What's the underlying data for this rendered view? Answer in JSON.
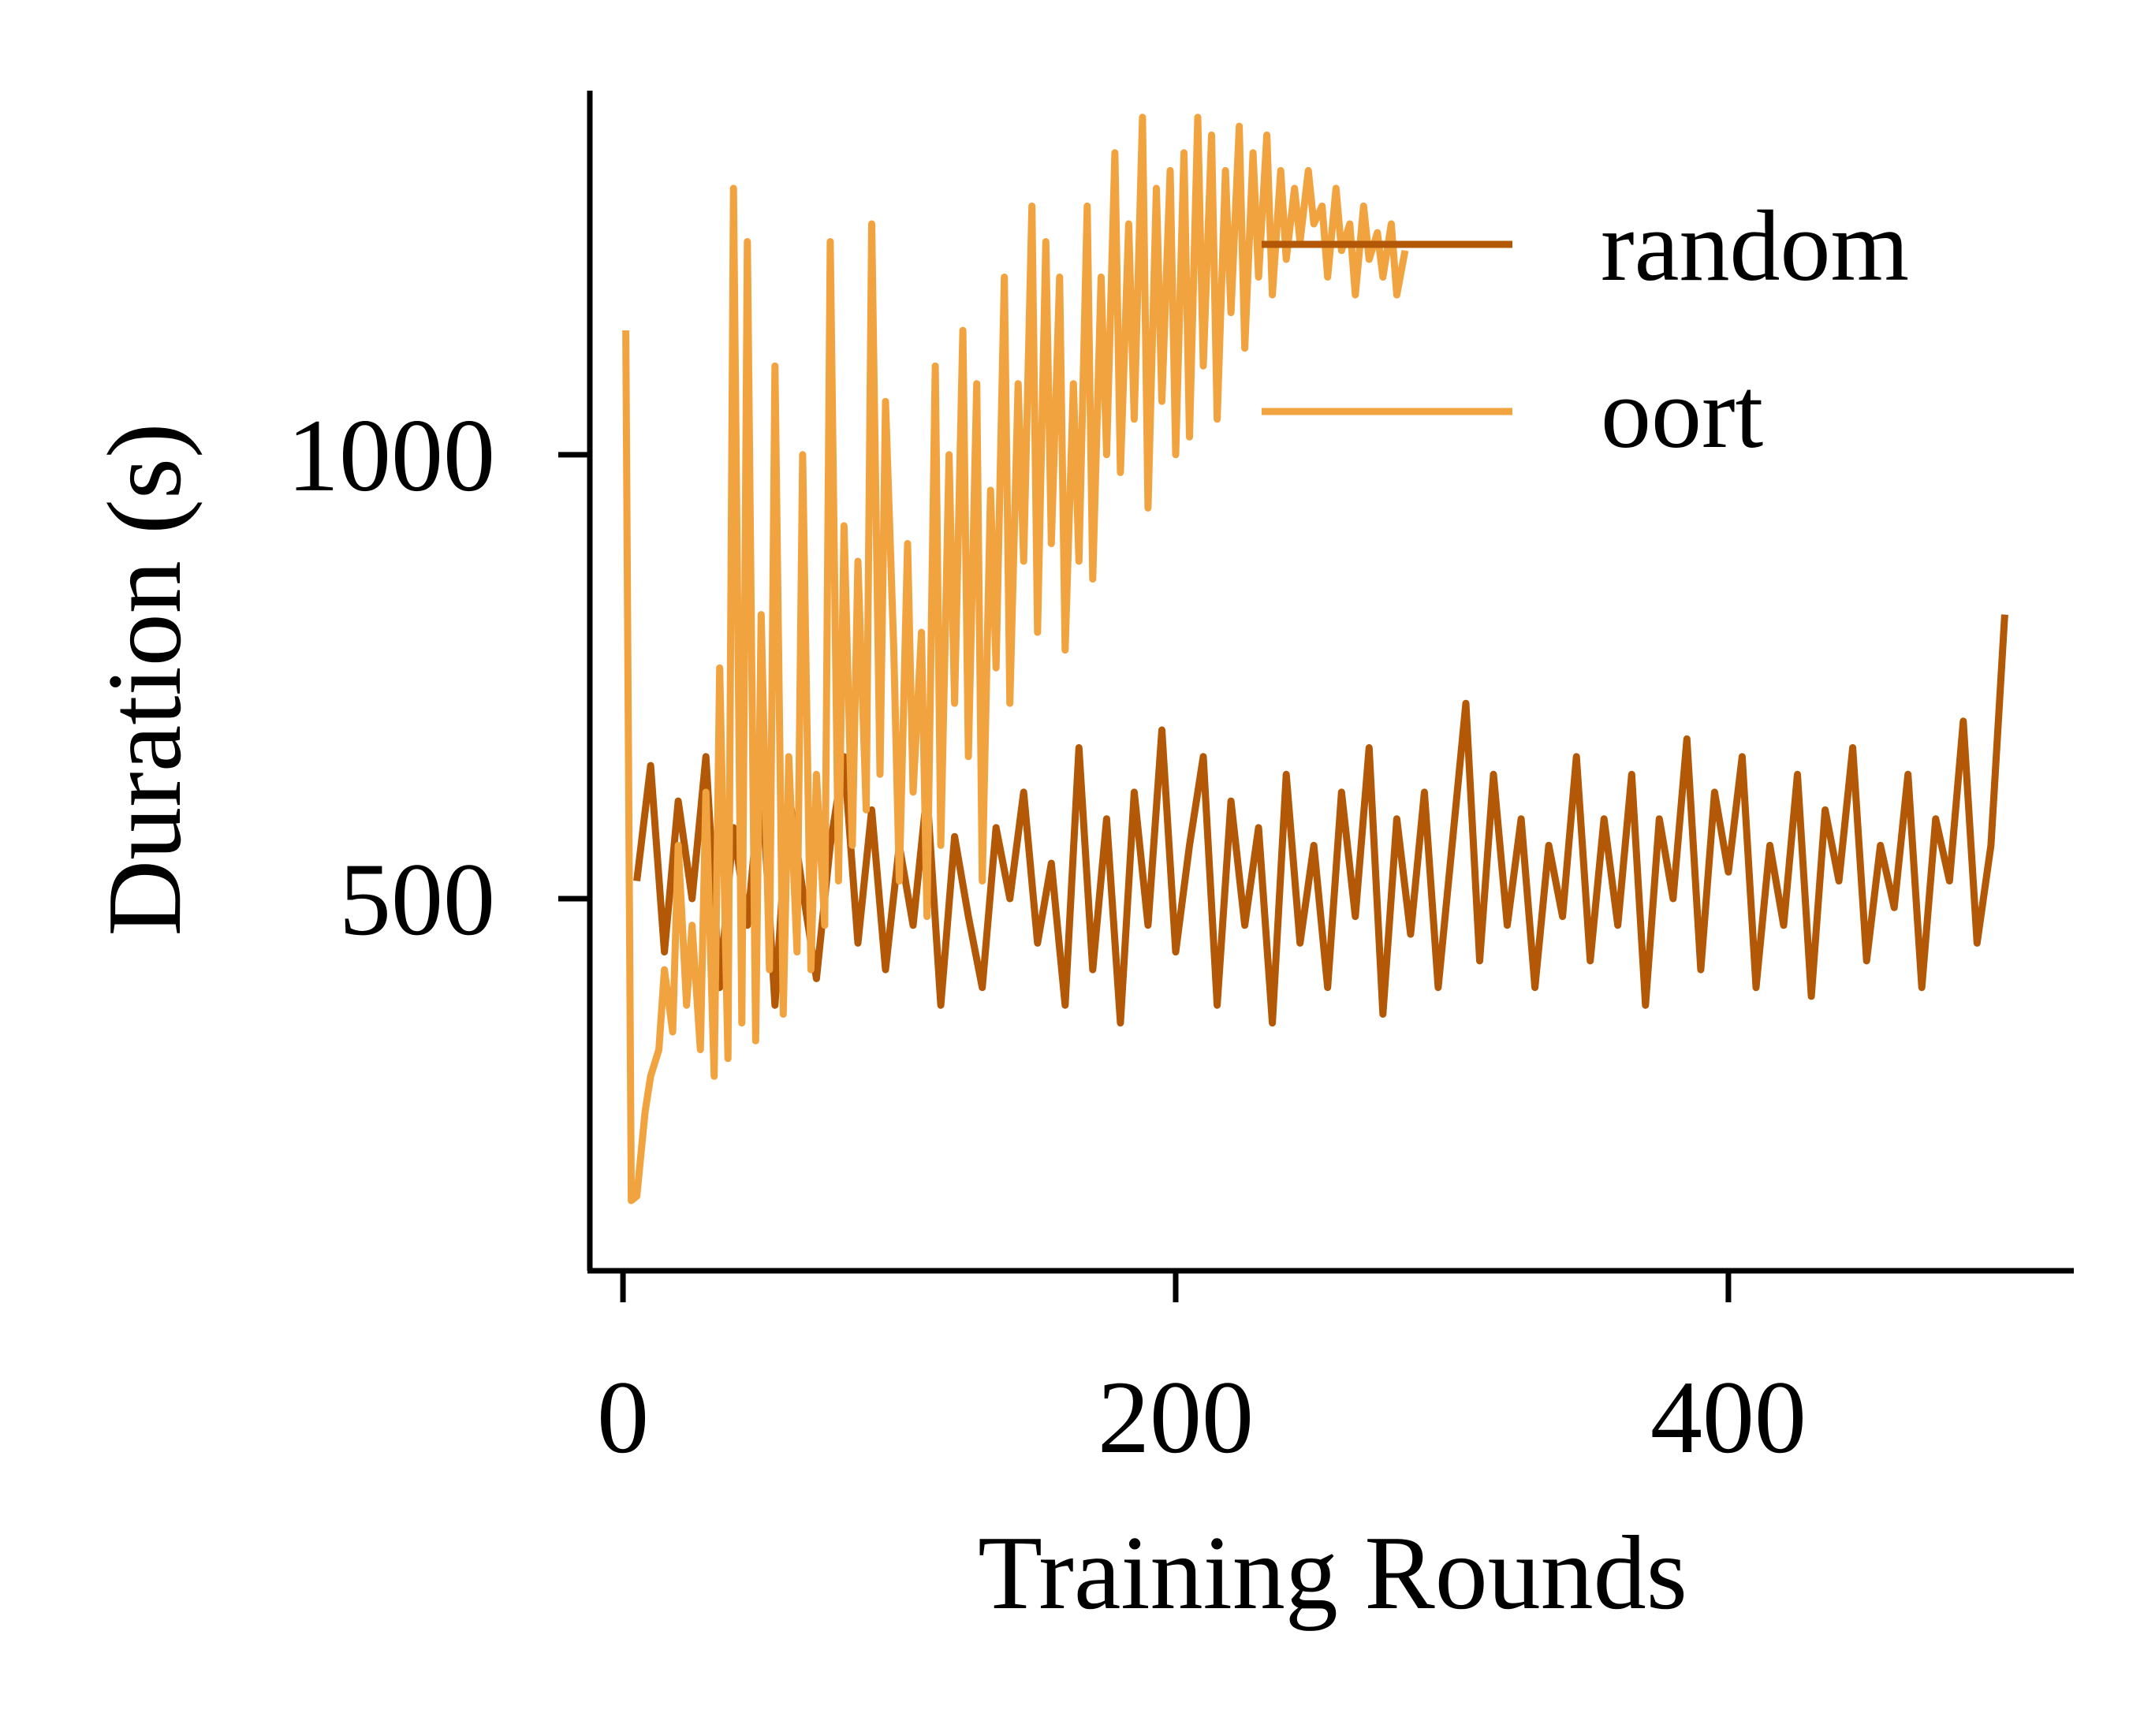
{
  "chart_data": {
    "type": "line",
    "title": "",
    "xlabel": "Training Rounds",
    "ylabel": "Duration (s)",
    "xlim": [
      -12,
      525
    ],
    "ylim": [
      81,
      1410
    ],
    "xticks": [
      {
        "value": 0,
        "label": "0"
      },
      {
        "value": 200,
        "label": "200"
      },
      {
        "value": 400,
        "label": "400"
      }
    ],
    "yticks": [
      {
        "value": 500,
        "label": "500"
      },
      {
        "value": 1000,
        "label": "1000"
      }
    ],
    "grid": false,
    "legend_position": "top-right",
    "series": [
      {
        "name": "random",
        "color": "#b35806",
        "x": [
          5,
          10,
          15,
          20,
          25,
          30,
          35,
          40,
          45,
          50,
          55,
          60,
          65,
          70,
          75,
          80,
          85,
          90,
          95,
          100,
          105,
          110,
          115,
          120,
          125,
          130,
          135,
          140,
          145,
          150,
          155,
          160,
          165,
          170,
          175,
          180,
          185,
          190,
          195,
          200,
          205,
          210,
          215,
          220,
          225,
          230,
          235,
          240,
          245,
          250,
          255,
          260,
          265,
          270,
          275,
          280,
          285,
          290,
          295,
          300,
          305,
          310,
          315,
          320,
          325,
          330,
          335,
          340,
          345,
          350,
          355,
          360,
          365,
          370,
          375,
          380,
          385,
          390,
          395,
          400,
          405,
          410,
          415,
          420,
          425,
          430,
          435,
          440,
          445,
          450,
          455,
          460,
          465,
          470,
          475,
          480,
          485,
          490,
          495,
          500
        ],
        "values": [
          520,
          650,
          440,
          610,
          500,
          660,
          400,
          580,
          470,
          640,
          380,
          620,
          510,
          410,
          560,
          660,
          450,
          600,
          420,
          560,
          470,
          620,
          380,
          570,
          480,
          400,
          580,
          500,
          620,
          450,
          540,
          380,
          670,
          420,
          590,
          360,
          620,
          470,
          690,
          440,
          560,
          660,
          380,
          610,
          470,
          580,
          360,
          640,
          450,
          560,
          400,
          620,
          480,
          670,
          370,
          590,
          460,
          620,
          400,
          560,
          720,
          430,
          640,
          470,
          590,
          400,
          560,
          480,
          660,
          430,
          590,
          470,
          640,
          380,
          590,
          500,
          680,
          420,
          620,
          530,
          660,
          400,
          560,
          470,
          640,
          390,
          600,
          520,
          670,
          430,
          560,
          490,
          640,
          400,
          590,
          520,
          700,
          450,
          560,
          820
        ]
      },
      {
        "name": "oort",
        "color": "#f1a340",
        "x": [
          1,
          3,
          5,
          8,
          10,
          13,
          15,
          18,
          20,
          23,
          25,
          28,
          30,
          33,
          35,
          38,
          40,
          43,
          45,
          48,
          50,
          53,
          55,
          58,
          60,
          63,
          65,
          68,
          70,
          73,
          75,
          78,
          80,
          83,
          85,
          88,
          90,
          93,
          95,
          98,
          100,
          103,
          105,
          108,
          110,
          113,
          115,
          118,
          120,
          123,
          125,
          128,
          130,
          133,
          135,
          138,
          140,
          143,
          145,
          148,
          150,
          153,
          155,
          158,
          160,
          163,
          165,
          168,
          170,
          173,
          175,
          178,
          180,
          183,
          185,
          188,
          190,
          193,
          195,
          198,
          200,
          203,
          205,
          208,
          210,
          213,
          215,
          218,
          220,
          223,
          225,
          228,
          230,
          233,
          235,
          238,
          240,
          243,
          245,
          248,
          250,
          253,
          255,
          258,
          260,
          263,
          265,
          268,
          270,
          273,
          275,
          278,
          280,
          283
        ],
        "values": [
          1140,
          160,
          165,
          260,
          300,
          330,
          420,
          350,
          560,
          380,
          470,
          330,
          620,
          300,
          760,
          320,
          1300,
          360,
          1240,
          340,
          820,
          420,
          1100,
          370,
          660,
          440,
          1000,
          420,
          640,
          470,
          1240,
          520,
          920,
          560,
          880,
          600,
          1260,
          640,
          1060,
          780,
          520,
          900,
          620,
          800,
          480,
          1100,
          560,
          1000,
          720,
          1140,
          660,
          1080,
          520,
          960,
          760,
          1200,
          720,
          1080,
          880,
          1280,
          800,
          1240,
          900,
          1200,
          780,
          1080,
          880,
          1280,
          860,
          1200,
          1000,
          1340,
          980,
          1260,
          1040,
          1380,
          940,
          1300,
          1060,
          1320,
          1000,
          1340,
          1020,
          1380,
          1100,
          1360,
          1040,
          1320,
          1160,
          1370,
          1120,
          1340,
          1200,
          1360,
          1180,
          1320,
          1220,
          1300,
          1240,
          1320,
          1260,
          1280,
          1200,
          1300,
          1230,
          1260,
          1180,
          1280,
          1220,
          1250,
          1200,
          1260,
          1180,
          1230
        ]
      }
    ]
  }
}
